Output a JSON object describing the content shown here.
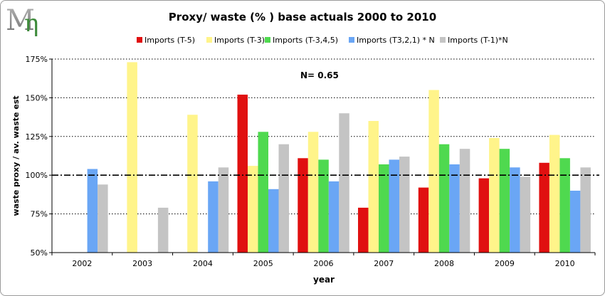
{
  "logo": {
    "text": "Mη",
    "colors": {
      "m": "#8a8a8a",
      "eta": "#3d8a3a"
    }
  },
  "chart_data": {
    "type": "bar",
    "title": "Proxy/ waste (% ) base actuals 2000 to 2010",
    "annotation": "N= 0.65",
    "xlabel": "year",
    "ylabel": "waste proxy / av. waste est",
    "ylim": [
      50,
      175
    ],
    "yticks": [
      50,
      75,
      100,
      125,
      150,
      175
    ],
    "ytick_labels": [
      "50%",
      "75%",
      "100%",
      "125%",
      "150%",
      "175%"
    ],
    "grid": "horizontal dotted",
    "reference_line": {
      "value": 100,
      "style": "dash-dot"
    },
    "legend_position": "top",
    "categories": [
      "2002",
      "2003",
      "2004",
      "2005",
      "2006",
      "2007",
      "2008",
      "2009",
      "2010"
    ],
    "series": [
      {
        "name": "Imports (T-5)",
        "color": "#e01010",
        "values": [
          null,
          null,
          null,
          152,
          111,
          79,
          92,
          98,
          108
        ]
      },
      {
        "name": "Imports (T-3)",
        "color": "#fff48a",
        "values": [
          null,
          173,
          139,
          106,
          128,
          135,
          155,
          124,
          126
        ]
      },
      {
        "name": "Imports (T-3,4,5)",
        "color": "#4fd94f",
        "values": [
          null,
          null,
          null,
          128,
          110,
          107,
          120,
          117,
          111
        ]
      },
      {
        "name": "Imports (T3,2,1) * N",
        "color": "#6aa6f5",
        "values": [
          104,
          null,
          96,
          91,
          96,
          110,
          107,
          105,
          90
        ]
      },
      {
        "name": "Imports (T-1)*N",
        "color": "#c4c4c4",
        "values": [
          94,
          79,
          105,
          120,
          140,
          112,
          117,
          99,
          105
        ]
      }
    ]
  }
}
